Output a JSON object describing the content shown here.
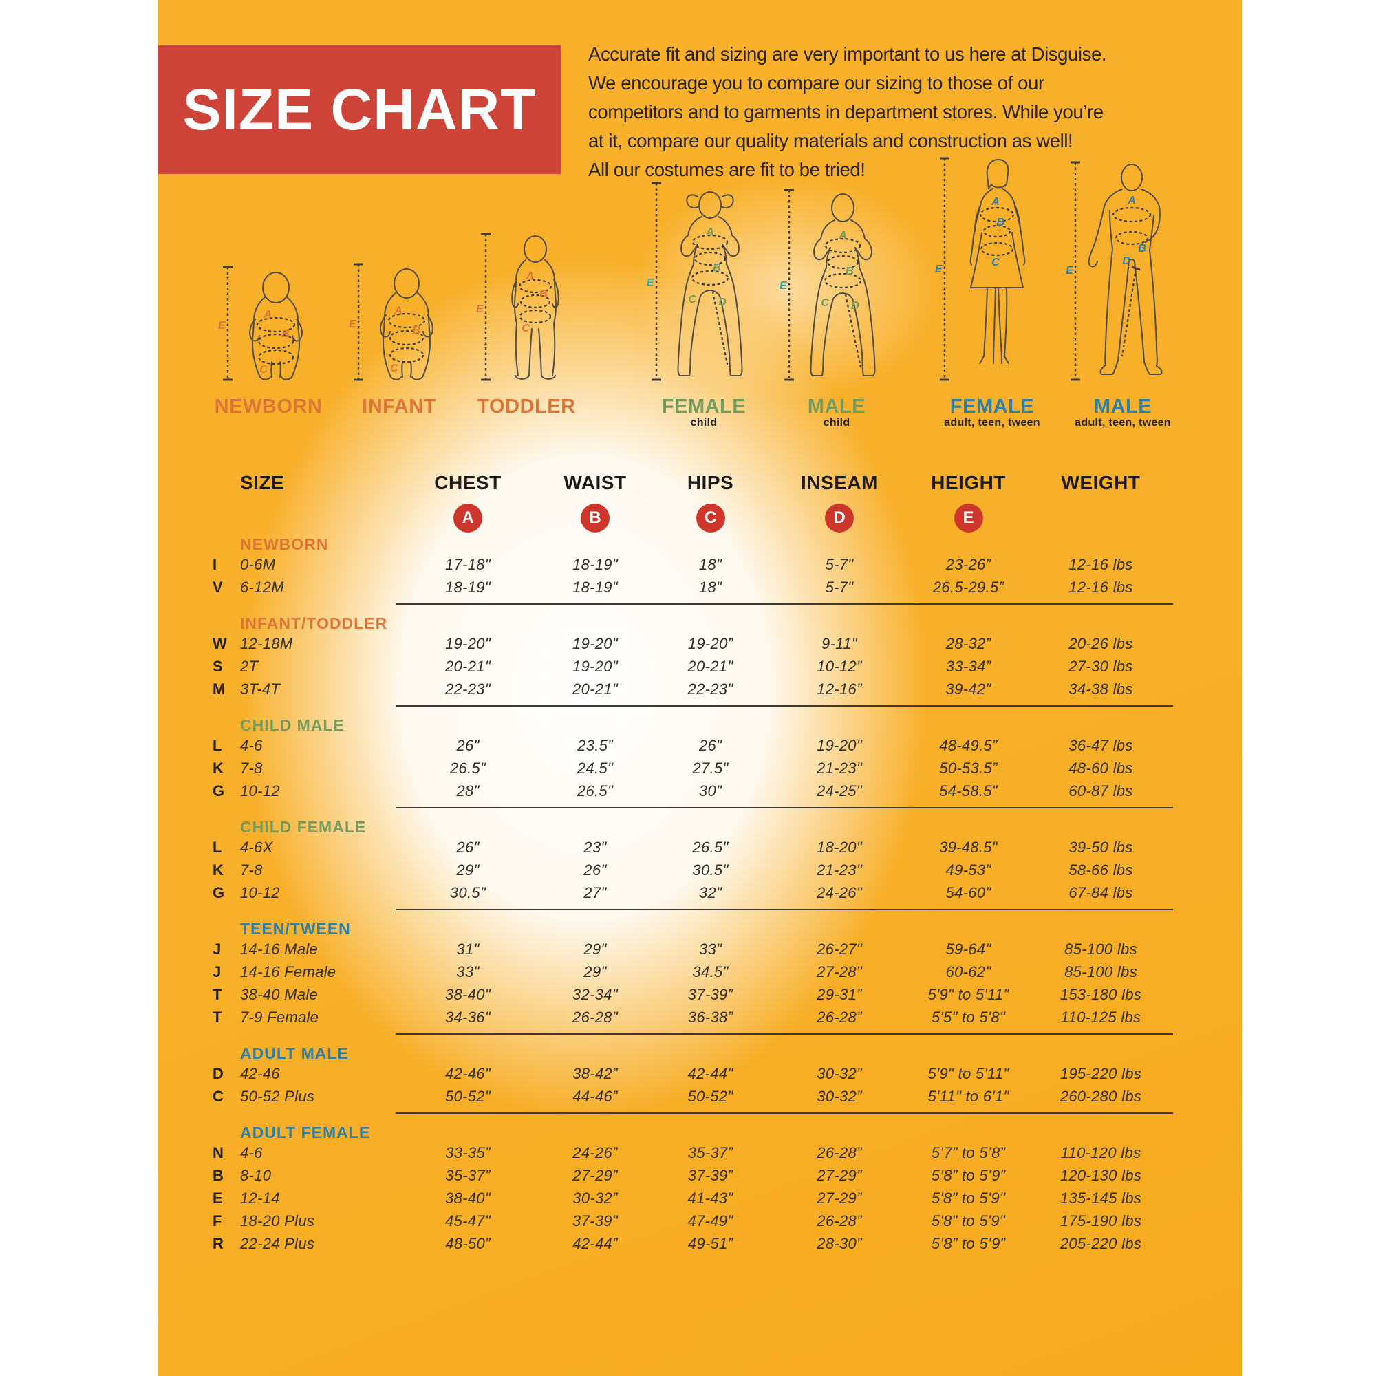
{
  "palette": {
    "yellow": "#F8B02A",
    "banner_red": "#CE4438",
    "badge_red": "#CD372B",
    "orange": "#DC7638",
    "green": "#769B5F",
    "blue": "#2E7FA3",
    "teal": "#2FA3A8"
  },
  "banner": {
    "title": "SIZE CHART"
  },
  "intro": {
    "lines": [
      "Accurate fit and sizing are very important to us here at Disguise.",
      "We encourage you to compare our sizing to those of our",
      "competitors and to garments in department stores. While you’re",
      "at it, compare our quality materials and construction as well!",
      "All our costumes are fit to be tried!"
    ]
  },
  "letters": {
    "A": "A",
    "B": "B",
    "C": "C",
    "D": "D",
    "E": "E"
  },
  "figures": [
    {
      "label": "NEWBORN",
      "sublabel": ""
    },
    {
      "label": "INFANT",
      "sublabel": ""
    },
    {
      "label": "TODDLER",
      "sublabel": ""
    },
    {
      "label": "FEMALE",
      "sublabel": "child"
    },
    {
      "label": "MALE",
      "sublabel": "child"
    },
    {
      "label": "FEMALE",
      "sublabel": "adult, teen, tween"
    },
    {
      "label": "MALE",
      "sublabel": "adult, teen, tween"
    }
  ],
  "table": {
    "columns": [
      "SIZE",
      "CHEST",
      "WAIST",
      "HIPS",
      "INSEAM",
      "HEIGHT",
      "WEIGHT"
    ],
    "badges": [
      "A",
      "B",
      "C",
      "D",
      "E"
    ],
    "sections": [
      {
        "name": "NEWBORN",
        "color": "orange",
        "rows": [
          [
            "I",
            "0-6M",
            "17-18\"",
            "18-19\"",
            "18\"",
            "5-7\"",
            "23-26”",
            "12-16 lbs"
          ],
          [
            "V",
            "6-12M",
            "18-19\"",
            "18-19\"",
            "18\"",
            "5-7\"",
            "26.5-29.5”",
            "12-16 lbs"
          ]
        ]
      },
      {
        "name": "INFANT/TODDLER",
        "color": "orange",
        "rows": [
          [
            "W",
            "12-18M",
            "19-20\"",
            "19-20\"",
            "19-20”",
            "9-11\"",
            "28-32”",
            "20-26 lbs"
          ],
          [
            "S",
            "2T",
            "20-21\"",
            "19-20\"",
            "20-21\"",
            "10-12”",
            "33-34”",
            "27-30 lbs"
          ],
          [
            "M",
            "3T-4T",
            "22-23\"",
            "20-21\"",
            "22-23\"",
            "12-16”",
            "39-42\"",
            "34-38 lbs"
          ]
        ]
      },
      {
        "name": "CHILD MALE",
        "color": "green",
        "rows": [
          [
            "L",
            "4-6",
            "26\"",
            "23.5”",
            "26\"",
            "19-20\"",
            "48-49.5”",
            "36-47 lbs"
          ],
          [
            "K",
            "7-8",
            "26.5\"",
            "24.5\"",
            "27.5\"",
            "21-23\"",
            "50-53.5”",
            "48-60 lbs"
          ],
          [
            "G",
            "10-12",
            "28\"",
            "26.5\"",
            "30\"",
            "24-25\"",
            "54-58.5\"",
            "60-87 lbs"
          ]
        ]
      },
      {
        "name": "CHILD FEMALE",
        "color": "green",
        "rows": [
          [
            "L",
            "4-6X",
            "26\"",
            "23\"",
            "26.5\"",
            "18-20\"",
            "39-48.5\"",
            "39-50 lbs"
          ],
          [
            "K",
            "7-8",
            "29\"",
            "26\"",
            "30.5\"",
            "21-23\"",
            "49-53\"",
            "58-66 lbs"
          ],
          [
            "G",
            "10-12",
            "30.5\"",
            "27\"",
            "32\"",
            "24-26\"",
            "54-60\"",
            "67-84 lbs"
          ]
        ]
      },
      {
        "name": "TEEN/TWEEN",
        "color": "blue",
        "rows": [
          [
            "J",
            "14-16 Male",
            "31\"",
            "29\"",
            "33\"",
            "26-27\"",
            "59-64\"",
            "85-100 lbs"
          ],
          [
            "J",
            "14-16 Female",
            "33\"",
            "29\"",
            "34.5\"",
            "27-28\"",
            "60-62\"",
            "85-100 lbs"
          ],
          [
            "T",
            "38-40 Male",
            "38-40\"",
            "32-34\"",
            "37-39”",
            "29-31”",
            "5'9\" to 5'11\"",
            "153-180 lbs"
          ],
          [
            "T",
            "7-9 Female",
            "34-36\"",
            "26-28\"",
            "36-38”",
            "26-28”",
            "5'5\" to 5'8\"",
            "110-125 lbs"
          ]
        ]
      },
      {
        "name": "ADULT MALE",
        "color": "blue",
        "rows": [
          [
            "D",
            "42-46",
            "42-46\"",
            "38-42”",
            "42-44\"",
            "30-32”",
            "5'9\" to 5'11\"",
            "195-220 lbs"
          ],
          [
            "C",
            "50-52 Plus",
            "50-52\"",
            "44-46”",
            "50-52\"",
            "30-32”",
            "5'11\" to 6'1\"",
            "260-280 lbs"
          ]
        ]
      },
      {
        "name": "ADULT FEMALE",
        "color": "blue",
        "rows": [
          [
            "N",
            "4-6",
            "33-35”",
            "24-26”",
            "35-37”",
            "26-28”",
            "5’7” to 5’8”",
            "110-120 lbs"
          ],
          [
            "B",
            "8-10",
            "35-37”",
            "27-29”",
            "37-39”",
            "27-29”",
            "5’8” to 5’9”",
            "120-130 lbs"
          ],
          [
            "E",
            "12-14",
            "38-40\"",
            "30-32”",
            "41-43\"",
            "27-29”",
            "5'8\" to 5'9\"",
            "135-145 lbs"
          ],
          [
            "F",
            "18-20 Plus",
            "45-47\"",
            "37-39\"",
            "47-49\"",
            "26-28”",
            "5'8\" to 5'9\"",
            "175-190 lbs"
          ],
          [
            "R",
            "22-24 Plus",
            "48-50”",
            "42-44”",
            "49-51”",
            "28-30”",
            "5’8” to 5’9”",
            "205-220 lbs"
          ]
        ]
      }
    ]
  }
}
